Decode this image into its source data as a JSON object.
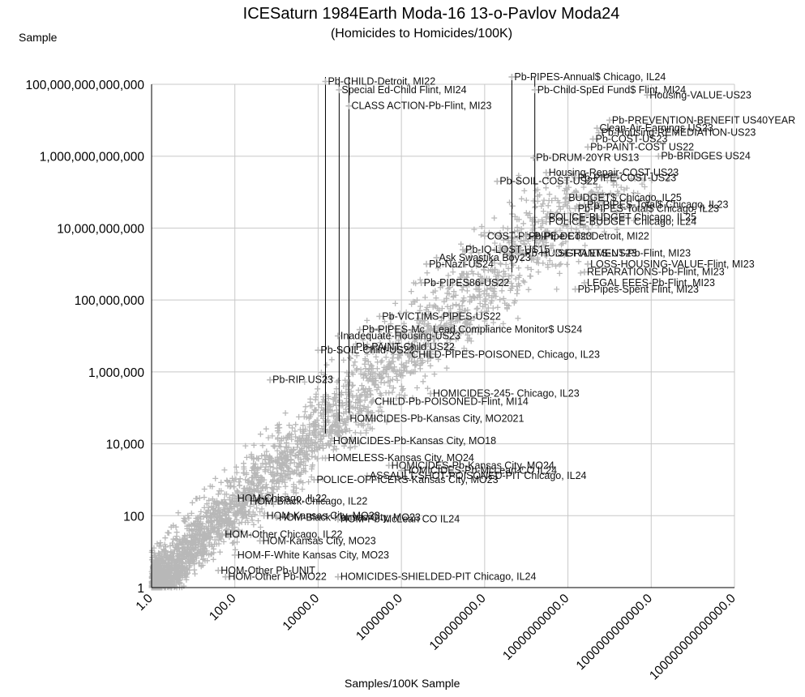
{
  "chart_data": {
    "type": "scatter",
    "title": "ICESaturn 1984Earth Moda-16 13-o-Pavlov Moda24",
    "subtitle": "(Homicides to Homicides/100K)",
    "xlabel": "Samples/100K Sample",
    "ylabel": "Sample",
    "xscale": "log",
    "yscale": "log",
    "xlim": [
      1,
      100000000000000.0
    ],
    "ylim": [
      1,
      100000000000000.0
    ],
    "grid": true,
    "legend": "none",
    "marker": "plus",
    "marker_color": "#b8b8b8",
    "grid_color": "#c8c8c8",
    "x_ticks": [
      "1.0",
      "100.0",
      "10000.0",
      "1000000.0",
      "100000000.0",
      "10000000000.0",
      "1000000000000.0",
      "100000000000000.0"
    ],
    "y_ticks": [
      "1",
      "100",
      "10,000",
      "1,000,000",
      "100,000,000",
      "10,000,000,000",
      "1,000,000,000,000",
      "100,000,000,000,000"
    ],
    "background_points_note": "dense cloud of several thousand unlabeled points along the diagonal",
    "points": [
      {
        "label": "Pb-CHILD-Detroit, MI22",
        "x": 15000.0,
        "y": 120000000000000.0
      },
      {
        "label": "Special Ed-Child Flint, MI24",
        "x": 32000.0,
        "y": 70000000000000.0
      },
      {
        "label": "CLASS ACTION-Pb-Flint, MI23",
        "x": 55000.0,
        "y": 25000000000000.0
      },
      {
        "label": "Pb-PIPES-Annual$ Chicago, IL24",
        "x": 450000000.0,
        "y": 160000000000000.0
      },
      {
        "label": "Pb-Child-SpEd Fund$ Flint, MI24",
        "x": 1600000000.0,
        "y": 70000000000000.0
      },
      {
        "label": "Housing-VALUE-US23",
        "x": 800000000000.0,
        "y": 50000000000000.0
      },
      {
        "label": "Pb-PREVENTION-BENEFIT US40YEAR",
        "x": 100000000000.0,
        "y": 10000000000000.0
      },
      {
        "label": "Clean-Air-Earnings US23",
        "x": 50000000000.0,
        "y": 6000000000000.0
      },
      {
        "label": "Pb-Housing-REMEDIATION-US23",
        "x": 55000000000.0,
        "y": 4500000000000.0
      },
      {
        "label": "Pb-COST-US23",
        "x": 40000000000.0,
        "y": 3000000000000.0
      },
      {
        "label": "Pb-PAINT-COST US22",
        "x": 30000000000.0,
        "y": 1800000000000.0
      },
      {
        "label": "Pb-BRIDGES US24",
        "x": 1500000000000.0,
        "y": 1000000000000.0
      },
      {
        "label": "Pb-DRUM-20YR US13",
        "x": 1500000000.0,
        "y": 900000000000.0
      },
      {
        "label": "Housing-Repair-COST-US23",
        "x": 3000000000.0,
        "y": 350000000000.0
      },
      {
        "label": "Pb-PIPE-COST-US23",
        "x": 15000000000.0,
        "y": 250000000000.0
      },
      {
        "label": "Pb-SOIL-COST-US22",
        "x": 200000000.0,
        "y": 200000000000.0
      },
      {
        "label": "BUDGET$ Chicago, IL25",
        "x": 9000000000.0,
        "y": 70000000000.0
      },
      {
        "label": "Pb-PIPES-Total$ Chicago, IL23",
        "x": 25000000000.0,
        "y": 45000000000.0
      },
      {
        "label": "Pb-PIPES-Total$ Chicago, IL23",
        "x": 15000000000.0,
        "y": 35000000000.0
      },
      {
        "label": "POLICE-BUDGET Chicago, IL25",
        "x": 3000000000.0,
        "y": 20000000000.0
      },
      {
        "label": "POLICE-BUDGET Chicago, IL24",
        "x": 3000000000.0,
        "y": 15000000000.0
      },
      {
        "label": "COST-Pb-PIPE-DET23",
        "x": 100000000.0,
        "y": 6000000000.0
      },
      {
        "label": "Pb-Pipe Cost Detroit, MI22",
        "x": 1000000000.0,
        "y": 6000000000.0
      },
      {
        "label": "Pb-IQ-LOST-US15",
        "x": 30000000.0,
        "y": 2500000000.0
      },
      {
        "label": "Pb-HUD-GRANTS-US23",
        "x": 800000000.0,
        "y": 2000000000.0
      },
      {
        "label": "SETTLEMENT-Pb-Flint, MI23",
        "x": 5000000000.0,
        "y": 2000000000.0
      },
      {
        "label": "Ask Swastika Boy23",
        "x": 7000000.0,
        "y": 1500000000.0
      },
      {
        "label": "LOSS-HOUSING-VALUE-Flint, MI23",
        "x": 30000000000.0,
        "y": 1000000000.0
      },
      {
        "label": "Pb-Nazi-US24",
        "x": 4000000.0,
        "y": 1000000000.0
      },
      {
        "label": "REPARATIONS-Pb-Flint, MI23",
        "x": 25000000000.0,
        "y": 600000000.0
      },
      {
        "label": "LEGAL FEES-Pb-Flint, MI23",
        "x": 25000000000.0,
        "y": 300000000.0
      },
      {
        "label": "Pb-Pipes-Spent Flint, MI23",
        "x": 15000000000.0,
        "y": 200000000.0
      },
      {
        "label": "Pb-PIPES86-US22",
        "x": 3000000.0,
        "y": 300000000.0
      },
      {
        "label": "Pb-VICTIMS-PIPES-US22",
        "x": 300000.0,
        "y": 35000000.0
      },
      {
        "label": "Pb-PIPES-Mc",
        "x": 100000.0,
        "y": 15000000.0
      },
      {
        "label": "Lead Compliance Monitor$ US24",
        "x": 5000000.0,
        "y": 15000000.0
      },
      {
        "label": "Inadequate-Housing-US23",
        "x": 30000.0,
        "y": 10000000.0
      },
      {
        "label": "Pb-PAINT-Child US22",
        "x": 70000.0,
        "y": 5000000.0
      },
      {
        "label": "Pb-SOIL-Child-US22",
        "x": 10000.0,
        "y": 4000000.0
      },
      {
        "label": "CHILD-PIPES-POISONED, Chicago, IL23",
        "x": 1500000.0,
        "y": 3000000.0
      },
      {
        "label": "Pb-RIP US23",
        "x": 700,
        "y": 600000.0
      },
      {
        "label": "HOMICIDES-245- Chicago, IL23",
        "x": 5000000.0,
        "y": 250000.0
      },
      {
        "label": "CHILD-Pb-POISONED-Flint, MI14",
        "x": 200000.0,
        "y": 150000.0
      },
      {
        "label": "HOMICIDES-Pb-Kansas City, MO2021",
        "x": 50000.0,
        "y": 50000.0
      },
      {
        "label": "HOMICIDES-Pb-Kansas City, MO18",
        "x": 20000.0,
        "y": 12000.0
      },
      {
        "label": "HOMELESS-Kansas City, MO24",
        "x": 15000.0,
        "y": 4000.0
      },
      {
        "label": "HOMICIDES-Pb-Kansas City, MO24",
        "x": 500000.0,
        "y": 2500.0
      },
      {
        "label": "HOMICIDES-Pb-McLean CO IL24",
        "x": 1000000.0,
        "y": 1800.0
      },
      {
        "label": "ASSAULT-SHOT-POISONED-PIT Chicago, IL24",
        "x": 150000.0,
        "y": 1300.0
      },
      {
        "label": "POLICE-OFFICERS-Kansas City, MO23",
        "x": 8000.0,
        "y": 1000.0
      },
      {
        "label": "HOM-Chicago, IL22",
        "x": 100,
        "y": 300
      },
      {
        "label": "HOM-Black-Chicago, IL22",
        "x": 200,
        "y": 250
      },
      {
        "label": "HOM-Kansas City, MO23",
        "x": 500,
        "y": 100
      },
      {
        "label": "HOM-Black-Kansas City, MO23",
        "x": 1000.0,
        "y": 90
      },
      {
        "label": "HOM-Pb-McLean CO IL24",
        "x": 30000.0,
        "y": 80
      },
      {
        "label": "HOM-Other Chicago, IL22",
        "x": 50,
        "y": 30
      },
      {
        "label": "HOM-Kansas City, MO23",
        "x": 400,
        "y": 20
      },
      {
        "label": "HOM-F-White Kansas City, MO23",
        "x": 100,
        "y": 8
      },
      {
        "label": "HOM-Other Pb-UNIT",
        "x": 40,
        "y": 3
      },
      {
        "label": "HOM-Other Pb-MO22",
        "x": 60,
        "y": 2
      },
      {
        "label": "HOMICIDES-SHIELDED-PIT Chicago, IL24",
        "x": 30000.0,
        "y": 2
      }
    ],
    "label_lines": [
      {
        "label": "Pb-CHILD-Detroit, MI22",
        "x": 15000.0
      },
      {
        "label": "Special Ed-Child Flint, MI24",
        "x": 32000.0
      },
      {
        "label": "CLASS ACTION-Pb-Flint, MI23",
        "x": 55000.0
      },
      {
        "label": "Pb-PIPES-Annual$ Chicago, IL24",
        "x": 450000000.0
      },
      {
        "label": "Pb-Child-SpEd Fund$ Flint, MI24",
        "x": 1600000000.0
      }
    ]
  }
}
